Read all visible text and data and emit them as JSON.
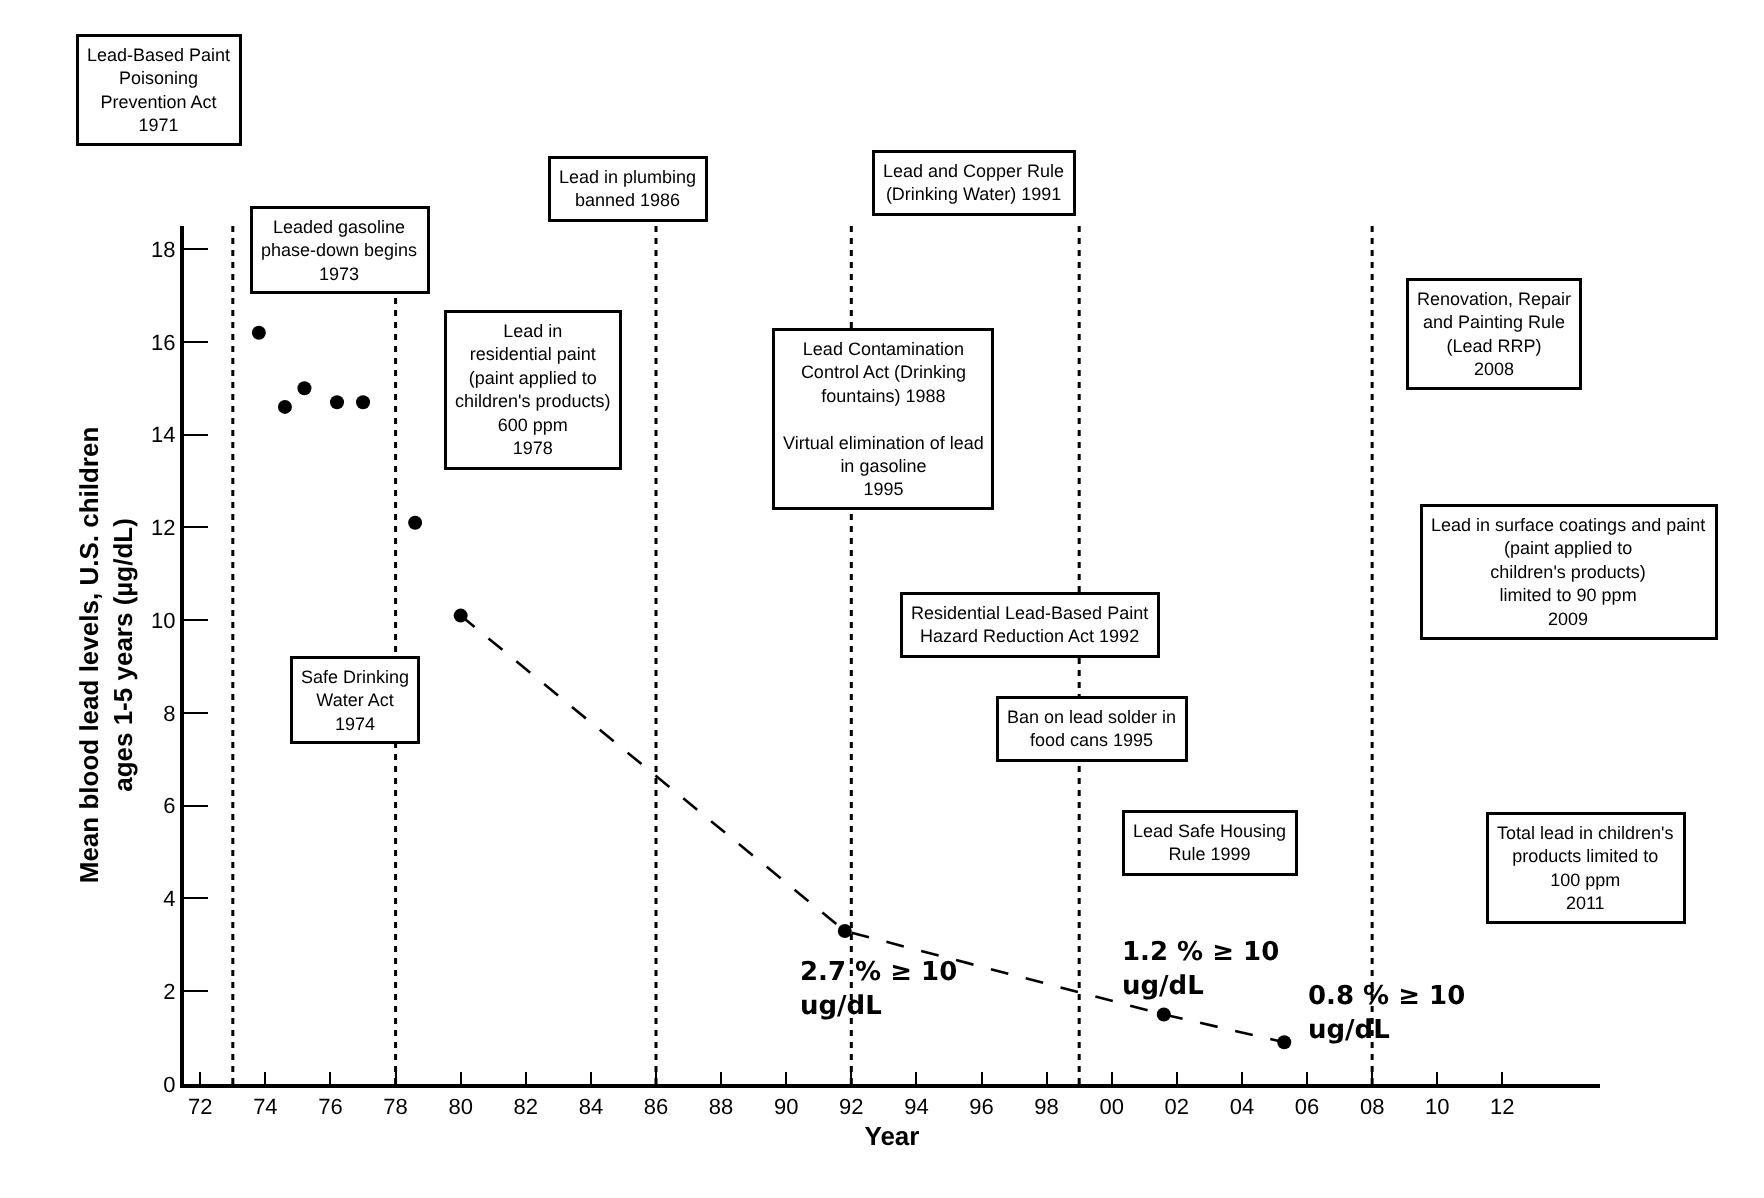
{
  "chart_data": {
    "type": "scatter",
    "xlabel": "Year",
    "ylabel": "Mean blood lead levels, U.S. children\nages 1-5 years (µg/dL)",
    "xlim": [
      1971.5,
      2015
    ],
    "xticks": [
      {
        "value": 1972,
        "label": "72"
      },
      {
        "value": 1974,
        "label": "74"
      },
      {
        "value": 1976,
        "label": "76"
      },
      {
        "value": 1978,
        "label": "78"
      },
      {
        "value": 1980,
        "label": "80"
      },
      {
        "value": 1982,
        "label": "82"
      },
      {
        "value": 1984,
        "label": "84"
      },
      {
        "value": 1986,
        "label": "86"
      },
      {
        "value": 1988,
        "label": "88"
      },
      {
        "value": 1990,
        "label": "90"
      },
      {
        "value": 1992,
        "label": "92"
      },
      {
        "value": 1994,
        "label": "94"
      },
      {
        "value": 1996,
        "label": "96"
      },
      {
        "value": 1998,
        "label": "98"
      },
      {
        "value": 2000,
        "label": "00"
      },
      {
        "value": 2002,
        "label": "02"
      },
      {
        "value": 2004,
        "label": "04"
      },
      {
        "value": 2006,
        "label": "06"
      },
      {
        "value": 2008,
        "label": "08"
      },
      {
        "value": 2010,
        "label": "10"
      },
      {
        "value": 2012,
        "label": "12"
      }
    ],
    "ylim": [
      0,
      18.5
    ],
    "yticks": [
      0,
      2,
      4,
      6,
      8,
      10,
      12,
      14,
      16,
      18
    ],
    "series": [
      {
        "type": "scatter",
        "color": "#000000",
        "marker": "circle",
        "x": [
          1973.8,
          1974.6,
          1975.2,
          1976.2,
          1977,
          1978.6,
          1980,
          1991.8,
          2001.6,
          2005.3
        ],
        "values": [
          16.2,
          14.6,
          15,
          14.7,
          14.7,
          12.1,
          10.1,
          3.3,
          1.5,
          0.9
        ]
      },
      {
        "type": "line",
        "color": "#000000",
        "marker": "none",
        "line_style": "dashed",
        "x": [
          1980,
          1991.8,
          2001.6,
          2005.3
        ],
        "values": [
          10.1,
          3.3,
          1.5,
          0.9
        ]
      }
    ],
    "ref_lines": [
      {
        "axis": "x",
        "value": 1973,
        "color": "#000000",
        "line_style": "dotted"
      },
      {
        "axis": "x",
        "value": 1978,
        "color": "#000000",
        "line_style": "dotted"
      },
      {
        "axis": "x",
        "value": 1986,
        "color": "#000000",
        "line_style": "dotted"
      },
      {
        "axis": "x",
        "value": 1992,
        "color": "#000000",
        "line_style": "dotted"
      },
      {
        "axis": "x",
        "value": 1999,
        "color": "#000000",
        "line_style": "dotted"
      },
      {
        "axis": "x",
        "value": 2008,
        "color": "#000000",
        "line_style": "dotted"
      }
    ],
    "annotations": [
      "Lead-Based Paint\nPoisoning\nPrevention Act\n1971",
      "Leaded gasoline\nphase-down begins\n1973",
      "Lead in\nresidential paint\n(paint applied to\nchildren's products)\n600 ppm\n1978",
      "Lead in plumbing\nbanned 1986",
      "Lead and Copper Rule\n(Drinking Water) 1991",
      "Lead Contamination\nControl Act (Drinking\nfountains) 1988\n\nVirtual elimination of lead\nin gasoline\n1995",
      "Residential Lead-Based Paint\nHazard Reduction Act 1992",
      "Ban on lead solder in\nfood cans 1995",
      "Lead Safe Housing\nRule 1999",
      "Renovation, Repair\nand Painting Rule\n(Lead RRP)\n2008",
      "Lead in surface coatings and paint\n(paint applied to\nchildren's products)\nlimited to 90 ppm\n2009",
      "Total lead in children's\nproducts limited to\n100 ppm\n2011",
      "Safe Drinking\nWater Act\n1974",
      {
        "text": "2.7 % ≥ 10\nug/dL",
        "x": 1991.8,
        "y": 3.3
      },
      {
        "text": "1.2 % ≥ 10\nug/dL",
        "x": 2001.6,
        "y": 1.5
      },
      {
        "text": "0.8 % ≥ 10\nug/dL",
        "x": 2005.3,
        "y": 0.9
      }
    ]
  }
}
